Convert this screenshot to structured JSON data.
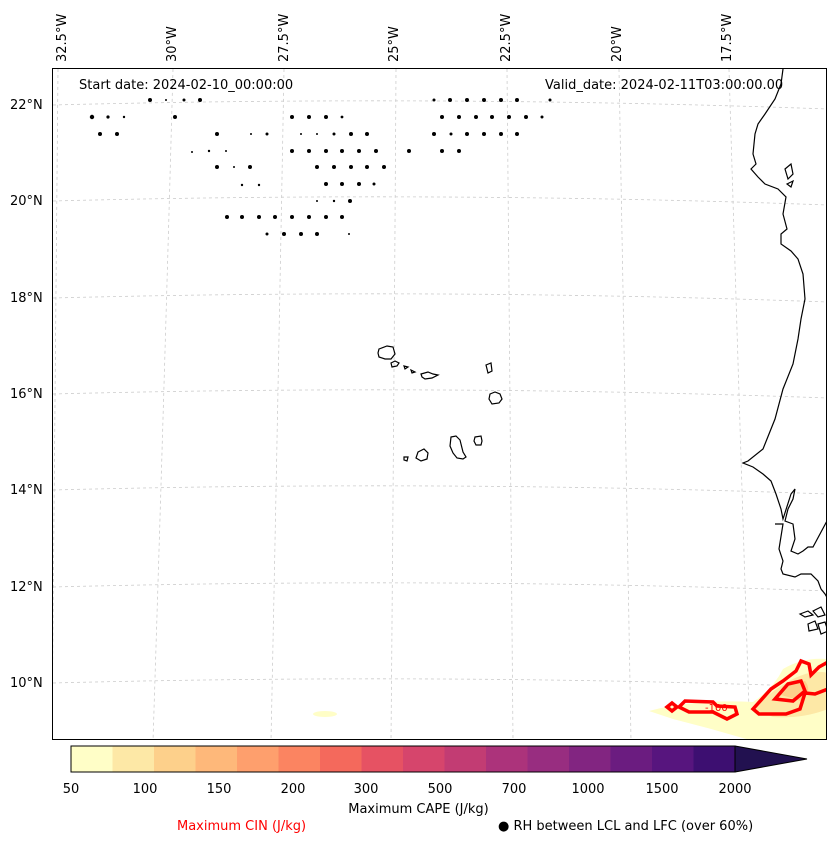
{
  "map": {
    "header": {
      "start_date": "Start date: 2024-02-10_00:00:00",
      "valid_date": "Valid_date: 2024-02-11T03:00:00.00"
    },
    "longitude_labels": [
      "32.5°W",
      "30°W",
      "27.5°W",
      "25°W",
      "22.5°W",
      "20°W",
      "17.5°W"
    ],
    "latitude_labels": [
      "22°N",
      "20°N",
      "18°N",
      "16°N",
      "14°N",
      "12°N",
      "10°N"
    ],
    "cin_contour_label": "-100",
    "colors": {
      "coastline": "#000000",
      "gridline": "#cccccc",
      "cin_contour": "#ff0000",
      "rh_marker": "#000000"
    }
  },
  "colorbar": {
    "title": "Maximum CAPE (J/kg)",
    "tick_labels": [
      "50",
      "100",
      "150",
      "200",
      "300",
      "500",
      "700",
      "1000",
      "1500",
      "2000"
    ],
    "colors": [
      "#fffec7",
      "#fde8a6",
      "#fdd08b",
      "#feb87a",
      "#fe9f6d",
      "#fb8461",
      "#f4695c",
      "#e65263",
      "#d6456c",
      "#c23c73",
      "#ac337b",
      "#982d80",
      "#822581",
      "#6b1c80",
      "#57157e",
      "#3d0f71",
      "#221150"
    ]
  },
  "legend": {
    "cin_label": "Maximum CIN (J/kg)",
    "rh_label": "● RH between LCL and LFC (over 60%)"
  }
}
